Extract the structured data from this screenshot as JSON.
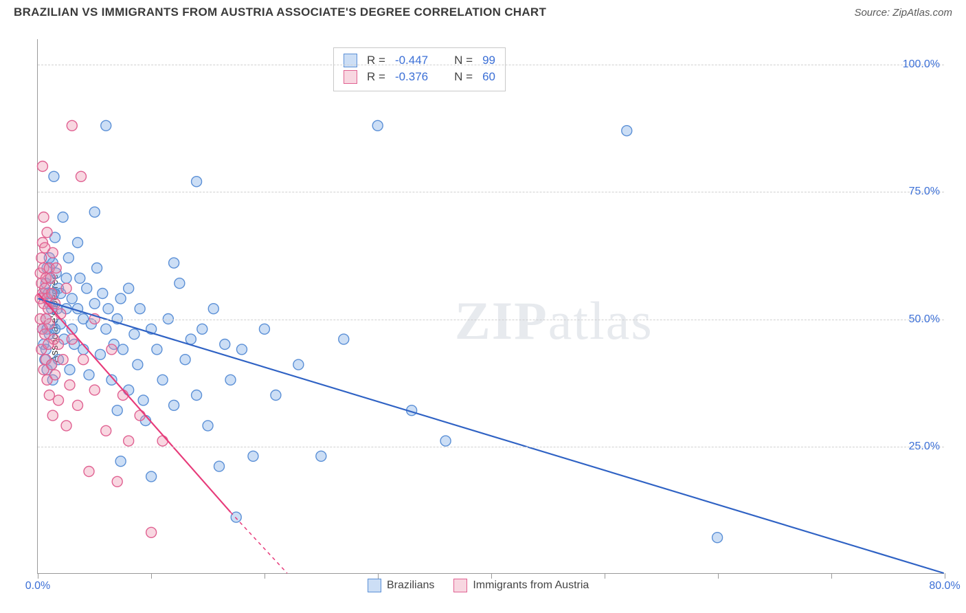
{
  "title": "BRAZILIAN VS IMMIGRANTS FROM AUSTRIA ASSOCIATE'S DEGREE CORRELATION CHART",
  "source": "Source: ZipAtlas.com",
  "y_axis_label": "Associate's Degree",
  "watermark": {
    "left": "ZIP",
    "right": "atlas"
  },
  "chart": {
    "type": "scatter",
    "xlim": [
      0,
      80
    ],
    "ylim": [
      0,
      105
    ],
    "x_ticks": [
      0,
      10,
      20,
      30,
      40,
      50,
      60,
      70,
      80
    ],
    "x_tick_labels": {
      "0": "0.0%",
      "80": "80.0%"
    },
    "y_grid": [
      25,
      50,
      75,
      100
    ],
    "y_tick_labels": {
      "25": "25.0%",
      "50": "50.0%",
      "75": "75.0%",
      "100": "100.0%"
    },
    "marker_radius": 7.5,
    "marker_stroke_width": 1.4,
    "background_color": "#ffffff",
    "grid_color": "#d0d0d0",
    "axis_color": "#999999",
    "tick_label_color": "#3b6fd6",
    "tick_label_fontsize": 16,
    "title_fontsize": 17,
    "title_color": "#3a3a3a"
  },
  "series": [
    {
      "name": "Brazilians",
      "fill": "rgba(110,160,225,0.35)",
      "stroke": "#5a8fd6",
      "r_label": "R =",
      "r_value": "-0.447",
      "n_label": "N =",
      "n_value": "99",
      "trend": {
        "x1": 0,
        "y1": 54,
        "x2": 80,
        "y2": 0,
        "color": "#2f62c4",
        "width": 2.2,
        "dash": ""
      },
      "points": [
        [
          0.4,
          48
        ],
        [
          0.5,
          45
        ],
        [
          0.6,
          42
        ],
        [
          0.6,
          55
        ],
        [
          0.7,
          57
        ],
        [
          0.7,
          50
        ],
        [
          0.7,
          44
        ],
        [
          0.8,
          48
        ],
        [
          0.8,
          60
        ],
        [
          0.8,
          40
        ],
        [
          0.9,
          55
        ],
        [
          1.0,
          53
        ],
        [
          1.0,
          47
        ],
        [
          1.0,
          62
        ],
        [
          1.1,
          58
        ],
        [
          1.2,
          41
        ],
        [
          1.2,
          52
        ],
        [
          1.3,
          61
        ],
        [
          1.3,
          38
        ],
        [
          1.4,
          55
        ],
        [
          1.5,
          48
        ],
        [
          1.5,
          66
        ],
        [
          1.6,
          59
        ],
        [
          1.7,
          52
        ],
        [
          1.8,
          56
        ],
        [
          1.8,
          42
        ],
        [
          2.0,
          49
        ],
        [
          2.0,
          55
        ],
        [
          2.2,
          70
        ],
        [
          2.3,
          46
        ],
        [
          2.5,
          58
        ],
        [
          2.5,
          52
        ],
        [
          2.7,
          62
        ],
        [
          2.8,
          40
        ],
        [
          3.0,
          54
        ],
        [
          3.0,
          48
        ],
        [
          3.2,
          45
        ],
        [
          3.5,
          52
        ],
        [
          3.5,
          65
        ],
        [
          3.7,
          58
        ],
        [
          4.0,
          50
        ],
        [
          4.0,
          44
        ],
        [
          4.3,
          56
        ],
        [
          4.5,
          39
        ],
        [
          4.7,
          49
        ],
        [
          5.0,
          71
        ],
        [
          5.0,
          53
        ],
        [
          5.2,
          60
        ],
        [
          5.5,
          43
        ],
        [
          5.7,
          55
        ],
        [
          6.0,
          48
        ],
        [
          6.0,
          88
        ],
        [
          6.2,
          52
        ],
        [
          6.5,
          38
        ],
        [
          6.7,
          45
        ],
        [
          7.0,
          32
        ],
        [
          7.0,
          50
        ],
        [
          7.3,
          22
        ],
        [
          7.3,
          54
        ],
        [
          7.5,
          44
        ],
        [
          8.0,
          56
        ],
        [
          8.0,
          36
        ],
        [
          8.5,
          47
        ],
        [
          8.8,
          41
        ],
        [
          9.0,
          52
        ],
        [
          9.3,
          34
        ],
        [
          9.5,
          30
        ],
        [
          10.0,
          48
        ],
        [
          10.0,
          19
        ],
        [
          10.5,
          44
        ],
        [
          11.0,
          38
        ],
        [
          11.5,
          50
        ],
        [
          12.0,
          33
        ],
        [
          12.5,
          57
        ],
        [
          13.0,
          42
        ],
        [
          13.5,
          46
        ],
        [
          14.0,
          77
        ],
        [
          14.0,
          35
        ],
        [
          14.5,
          48
        ],
        [
          15.0,
          29
        ],
        [
          15.5,
          52
        ],
        [
          16.0,
          21
        ],
        [
          16.5,
          45
        ],
        [
          17.0,
          38
        ],
        [
          17.5,
          11
        ],
        [
          18.0,
          44
        ],
        [
          19.0,
          23
        ],
        [
          20.0,
          48
        ],
        [
          21.0,
          35
        ],
        [
          23.0,
          41
        ],
        [
          25.0,
          23
        ],
        [
          27.0,
          46
        ],
        [
          30.0,
          88
        ],
        [
          33.0,
          32
        ],
        [
          36.0,
          26
        ],
        [
          60.0,
          7
        ],
        [
          52.0,
          87
        ],
        [
          12.0,
          61
        ],
        [
          1.4,
          78
        ]
      ]
    },
    {
      "name": "Immigrants from Austria",
      "fill": "rgba(235,140,170,0.35)",
      "stroke": "#e06091",
      "r_label": "R =",
      "r_value": "-0.376",
      "n_label": "N =",
      "n_value": "60",
      "trend": {
        "x1": 0,
        "y1": 55,
        "x2": 17,
        "y2": 12,
        "color": "#e73b7a",
        "width": 2.2,
        "dash": ""
      },
      "trend_ext": {
        "x1": 17,
        "y1": 12,
        "x2": 22,
        "y2": 0,
        "color": "#e73b7a",
        "width": 1.5,
        "dash": "5,5"
      },
      "points": [
        [
          0.2,
          54
        ],
        [
          0.2,
          59
        ],
        [
          0.2,
          50
        ],
        [
          0.3,
          57
        ],
        [
          0.3,
          44
        ],
        [
          0.3,
          62
        ],
        [
          0.4,
          48
        ],
        [
          0.4,
          55
        ],
        [
          0.4,
          65
        ],
        [
          0.4,
          80
        ],
        [
          0.5,
          53
        ],
        [
          0.5,
          40
        ],
        [
          0.5,
          60
        ],
        [
          0.5,
          70
        ],
        [
          0.6,
          47
        ],
        [
          0.6,
          56
        ],
        [
          0.6,
          64
        ],
        [
          0.7,
          50
        ],
        [
          0.7,
          42
        ],
        [
          0.7,
          58
        ],
        [
          0.8,
          38
        ],
        [
          0.8,
          54
        ],
        [
          0.8,
          67
        ],
        [
          0.9,
          45
        ],
        [
          0.9,
          52
        ],
        [
          1.0,
          60
        ],
        [
          1.0,
          35
        ],
        [
          1.0,
          49
        ],
        [
          1.1,
          58
        ],
        [
          1.2,
          41
        ],
        [
          1.2,
          55
        ],
        [
          1.3,
          31
        ],
        [
          1.3,
          63
        ],
        [
          1.4,
          46
        ],
        [
          1.5,
          53
        ],
        [
          1.5,
          39
        ],
        [
          1.6,
          60
        ],
        [
          1.8,
          45
        ],
        [
          1.8,
          34
        ],
        [
          2.0,
          51
        ],
        [
          2.2,
          42
        ],
        [
          2.5,
          29
        ],
        [
          2.5,
          56
        ],
        [
          2.8,
          37
        ],
        [
          3.0,
          46
        ],
        [
          3.0,
          88
        ],
        [
          3.5,
          33
        ],
        [
          3.8,
          78
        ],
        [
          4.0,
          42
        ],
        [
          4.5,
          20
        ],
        [
          5.0,
          36
        ],
        [
          5.0,
          50
        ],
        [
          6.0,
          28
        ],
        [
          6.5,
          44
        ],
        [
          7.0,
          18
        ],
        [
          7.5,
          35
        ],
        [
          8.0,
          26
        ],
        [
          9.0,
          31
        ],
        [
          10.0,
          8
        ],
        [
          11.0,
          26
        ]
      ]
    }
  ]
}
